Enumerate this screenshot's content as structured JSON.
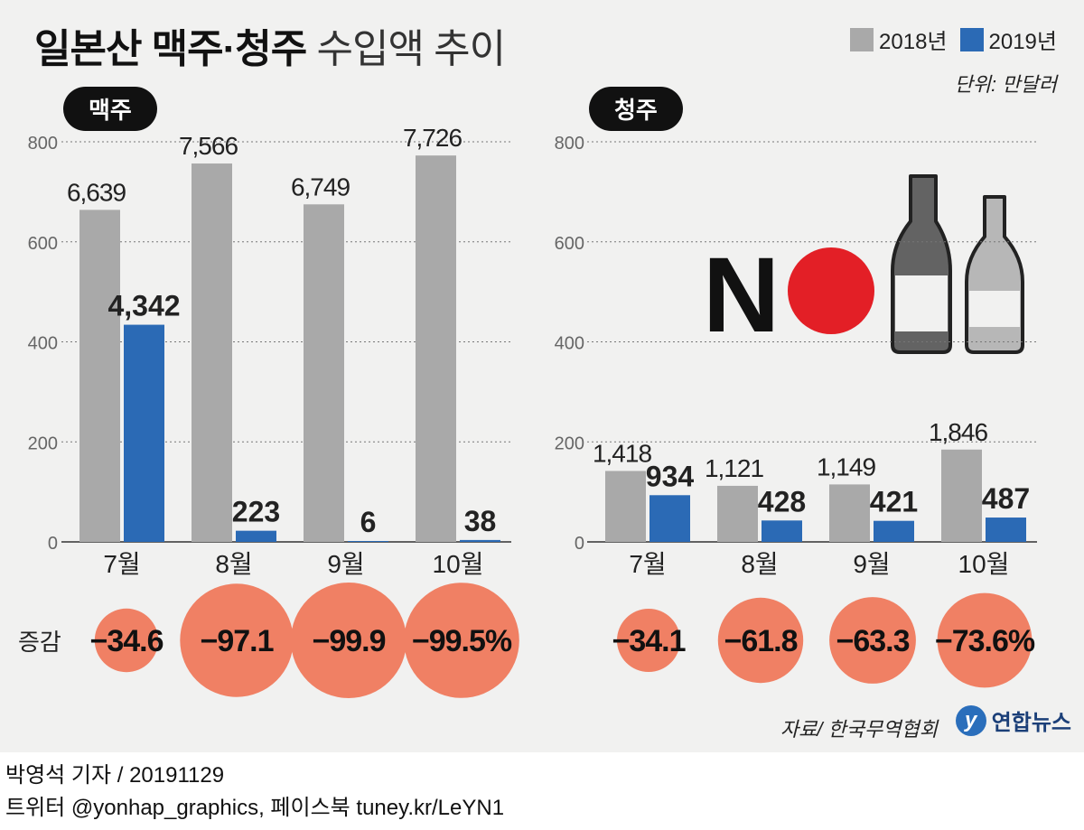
{
  "header": {
    "title_bold": "일본산 맥주·청주",
    "title_light": "수입액 추이"
  },
  "legend": {
    "items": [
      {
        "label": "2018년",
        "color": "#a9a9a9"
      },
      {
        "label": "2019년",
        "color": "#2b6ab5"
      }
    ]
  },
  "unit": "단위: 만달러",
  "change_label": "증감",
  "source": "자료/ 한국무역협회",
  "logo": {
    "mark": "y",
    "text": "연합뉴스"
  },
  "footer": {
    "byline": "박영석 기자 /  20191129",
    "social": "트위터 @yonhap_graphics, 페이스북 tuney.kr/LeYN1"
  },
  "nologo": {
    "letter": "N"
  },
  "chart_data": [
    {
      "type": "bar",
      "label": "맥주",
      "categories": [
        "7월",
        "8월",
        "9월",
        "10월"
      ],
      "ylim": [
        0,
        800
      ],
      "yticks": [
        0,
        200,
        400,
        600,
        800
      ],
      "series": [
        {
          "name": "2018년",
          "color": "#a9a9a9",
          "values": [
            663.9,
            756.6,
            674.9,
            772.6
          ],
          "labels": [
            "6,639",
            "7,566",
            "6,749",
            "7,726"
          ]
        },
        {
          "name": "2019년",
          "color": "#2b6ab5",
          "values": [
            434.2,
            22.3,
            0.6,
            3.8
          ],
          "labels": [
            "4,342",
            "223",
            "6",
            "38"
          ]
        }
      ],
      "change": {
        "values": [
          -34.6,
          -97.1,
          -99.9,
          -99.5
        ],
        "labels": [
          "−34.6",
          "−97.1",
          "−99.9",
          "−99.5%"
        ]
      }
    },
    {
      "type": "bar",
      "label": "청주",
      "categories": [
        "7월",
        "8월",
        "9월",
        "10월"
      ],
      "ylim": [
        0,
        800
      ],
      "yticks": [
        0,
        200,
        400,
        600,
        800
      ],
      "series": [
        {
          "name": "2018년",
          "color": "#a9a9a9",
          "values": [
            141.8,
            112.1,
            114.9,
            184.6
          ],
          "labels": [
            "1,418",
            "1,121",
            "1,149",
            "1,846"
          ]
        },
        {
          "name": "2019년",
          "color": "#2b6ab5",
          "values": [
            93.4,
            42.8,
            42.1,
            48.7
          ],
          "labels": [
            "934",
            "428",
            "421",
            "487"
          ]
        }
      ],
      "change": {
        "values": [
          -34.1,
          -61.8,
          -63.3,
          -73.6
        ],
        "labels": [
          "−34.1",
          "−61.8",
          "−63.3",
          "−73.6%"
        ]
      }
    }
  ]
}
